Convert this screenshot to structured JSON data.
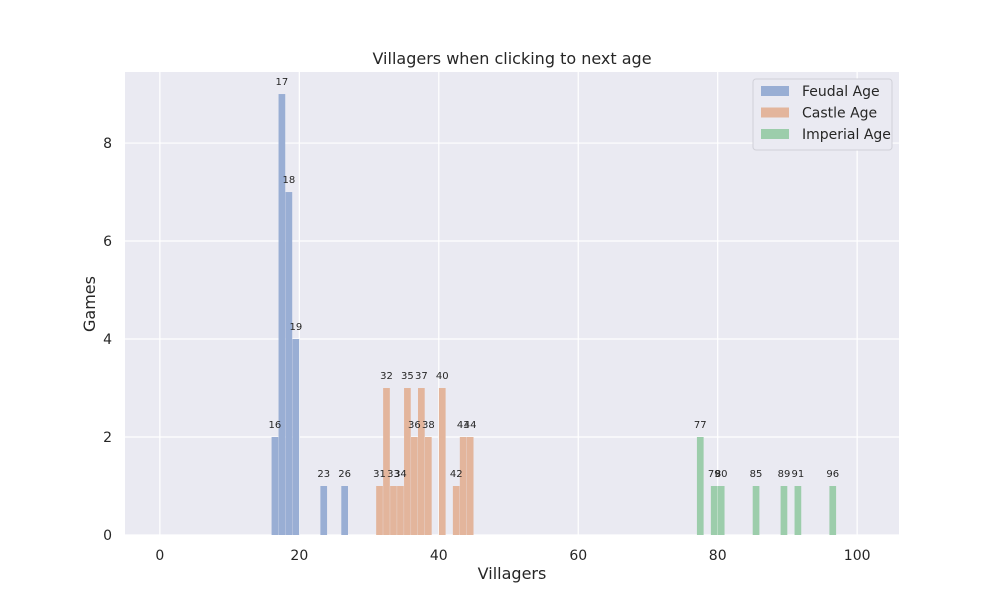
{
  "chart_data": {
    "type": "bar",
    "title": "Villagers when clicking to next age",
    "xlabel": "Villagers",
    "ylabel": "Games",
    "xlim": [
      -5,
      106
    ],
    "ylim": [
      0,
      9.45
    ],
    "xticks": [
      0,
      20,
      40,
      60,
      80,
      100
    ],
    "yticks": [
      0,
      2,
      4,
      6,
      8
    ],
    "grid": true,
    "legend_position": "top-right",
    "series": [
      {
        "name": "Feudal Age",
        "color": "#99aed4",
        "points": [
          {
            "x": 16,
            "y": 2,
            "label": "16"
          },
          {
            "x": 17,
            "y": 9,
            "label": "17"
          },
          {
            "x": 18,
            "y": 7,
            "label": "18"
          },
          {
            "x": 19,
            "y": 4,
            "label": "19"
          },
          {
            "x": 23,
            "y": 1,
            "label": "23"
          },
          {
            "x": 26,
            "y": 1,
            "label": "26"
          }
        ]
      },
      {
        "name": "Castle Age",
        "color": "#e3b59c",
        "points": [
          {
            "x": 31,
            "y": 1,
            "label": "31"
          },
          {
            "x": 32,
            "y": 3,
            "label": "32"
          },
          {
            "x": 33,
            "y": 1,
            "label": "33"
          },
          {
            "x": 34,
            "y": 1,
            "label": "34"
          },
          {
            "x": 35,
            "y": 3,
            "label": "35"
          },
          {
            "x": 36,
            "y": 2,
            "label": "36"
          },
          {
            "x": 37,
            "y": 3,
            "label": "37"
          },
          {
            "x": 38,
            "y": 2,
            "label": "38"
          },
          {
            "x": 40,
            "y": 3,
            "label": "40"
          },
          {
            "x": 42,
            "y": 1,
            "label": "42"
          },
          {
            "x": 43,
            "y": 2,
            "label": "43"
          },
          {
            "x": 44,
            "y": 2,
            "label": "44"
          }
        ]
      },
      {
        "name": "Imperial Age",
        "color": "#9ccdab",
        "points": [
          {
            "x": 77,
            "y": 2,
            "label": "77"
          },
          {
            "x": 79,
            "y": 1,
            "label": "79"
          },
          {
            "x": 80,
            "y": 1,
            "label": "80"
          },
          {
            "x": 85,
            "y": 1,
            "label": "85"
          },
          {
            "x": 89,
            "y": 1,
            "label": "89"
          },
          {
            "x": 91,
            "y": 1,
            "label": "91"
          },
          {
            "x": 96,
            "y": 1,
            "label": "96"
          }
        ]
      }
    ]
  }
}
